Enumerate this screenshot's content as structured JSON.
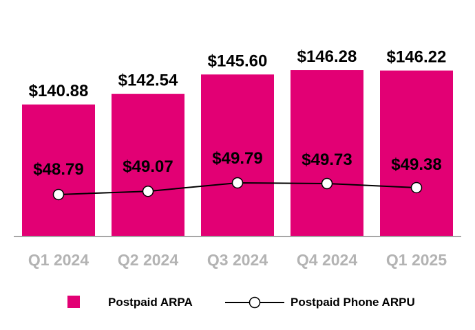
{
  "chart_data": {
    "type": "bar",
    "categories": [
      "Q1 2024",
      "Q2 2024",
      "Q3 2024",
      "Q4 2024",
      "Q1 2025"
    ],
    "series": [
      {
        "name": "Postpaid ARPA",
        "type": "bar",
        "values": [
          140.88,
          142.54,
          145.6,
          146.28,
          146.22
        ],
        "labels": [
          "$140.88",
          "$142.54",
          "$145.60",
          "$146.28",
          "$146.22"
        ],
        "color": "#E20074"
      },
      {
        "name": "Postpaid Phone ARPU",
        "type": "line",
        "values": [
          48.79,
          49.07,
          49.79,
          49.73,
          49.38
        ],
        "labels": [
          "$48.79",
          "$49.07",
          "$49.79",
          "$49.73",
          "$49.38"
        ],
        "color": "#000000"
      }
    ],
    "title": "",
    "xlabel": "",
    "ylabel": "",
    "grid": false,
    "legend": "bottom"
  }
}
